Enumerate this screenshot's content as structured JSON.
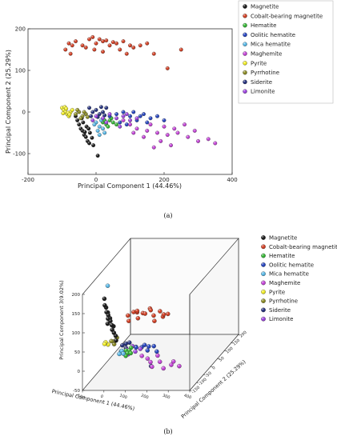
{
  "figure": {
    "panel_a_caption": "(a)",
    "panel_b_caption": "(b)"
  },
  "chart_data": [
    {
      "type": "scatter",
      "panel": "(a)",
      "title": "",
      "xlabel": "Principal Component 1 (44.46%)",
      "ylabel": "Principal Component 2 (25.29%)",
      "xlim": [
        -200,
        400
      ],
      "ylim": [
        -150,
        200
      ],
      "xticks": [
        -200,
        0,
        200,
        400
      ],
      "yticks": [
        -100,
        0,
        100,
        200
      ],
      "grid": false,
      "legend_position": "outside-top-right",
      "series": [
        {
          "name": "Magnetite",
          "color": "#111111",
          "points": [
            [
              -50,
              -30
            ],
            [
              -45,
              -40
            ],
            [
              -40,
              -45
            ],
            [
              -35,
              -55
            ],
            [
              -30,
              -60
            ],
            [
              -25,
              -70
            ],
            [
              -20,
              -75
            ],
            [
              -55,
              -20
            ],
            [
              -60,
              -10
            ],
            [
              -38,
              -25
            ],
            [
              -28,
              -35
            ],
            [
              -18,
              -50
            ],
            [
              -12,
              -62
            ],
            [
              -8,
              -80
            ],
            [
              5,
              -105
            ],
            [
              -42,
              -15
            ],
            [
              -33,
              -48
            ],
            [
              -22,
              -40
            ]
          ]
        },
        {
          "name": "Cobalt-bearing magnetite",
          "color": "#d23a1e",
          "points": [
            [
              -80,
              165
            ],
            [
              -60,
              170
            ],
            [
              -40,
              160
            ],
            [
              -20,
              175
            ],
            [
              0,
              165
            ],
            [
              20,
              170
            ],
            [
              40,
              160
            ],
            [
              60,
              165
            ],
            [
              80,
              170
            ],
            [
              100,
              160
            ],
            [
              -90,
              150
            ],
            [
              -70,
              160
            ],
            [
              -10,
              180
            ],
            [
              10,
              175
            ],
            [
              30,
              172
            ],
            [
              50,
              168
            ],
            [
              70,
              150
            ],
            [
              90,
              140
            ],
            [
              110,
              155
            ],
            [
              130,
              160
            ],
            [
              150,
              165
            ],
            [
              170,
              140
            ],
            [
              -75,
              140
            ],
            [
              -5,
              150
            ],
            [
              20,
              145
            ],
            [
              210,
              105
            ],
            [
              250,
              150
            ],
            [
              -30,
              155
            ]
          ]
        },
        {
          "name": "Hematite",
          "color": "#2fb52f",
          "points": [
            [
              20,
              -25
            ],
            [
              30,
              -30
            ],
            [
              40,
              -20
            ],
            [
              50,
              -25
            ],
            [
              60,
              -30
            ],
            [
              35,
              -35
            ],
            [
              45,
              -15
            ],
            [
              25,
              -20
            ]
          ]
        },
        {
          "name": "Oolitic hematite",
          "color": "#1f3fbf",
          "points": [
            [
              40,
              -10
            ],
            [
              60,
              -5
            ],
            [
              80,
              0
            ],
            [
              100,
              -10
            ],
            [
              120,
              -20
            ],
            [
              140,
              -5
            ],
            [
              160,
              -15
            ],
            [
              180,
              -10
            ],
            [
              200,
              -20
            ],
            [
              70,
              -25
            ],
            [
              90,
              -30
            ],
            [
              110,
              0
            ],
            [
              130,
              -10
            ],
            [
              150,
              -25
            ]
          ]
        },
        {
          "name": "Mica hematite",
          "color": "#55b8e8",
          "points": [
            [
              0,
              -25
            ],
            [
              10,
              -35
            ],
            [
              20,
              -40
            ],
            [
              5,
              -45
            ],
            [
              15,
              -20
            ],
            [
              -5,
              -30
            ],
            [
              25,
              -50
            ],
            [
              10,
              -55
            ]
          ]
        },
        {
          "name": "Maghemite",
          "color": "#c43fd8",
          "points": [
            [
              80,
              -20
            ],
            [
              100,
              -30
            ],
            [
              120,
              -40
            ],
            [
              150,
              -45
            ],
            [
              180,
              -50
            ],
            [
              210,
              -55
            ],
            [
              240,
              -50
            ],
            [
              270,
              -60
            ],
            [
              300,
              -70
            ],
            [
              330,
              -65
            ],
            [
              350,
              -75
            ],
            [
              160,
              -30
            ],
            [
              200,
              -35
            ],
            [
              230,
              -40
            ],
            [
              260,
              -30
            ],
            [
              290,
              -45
            ],
            [
              140,
              -60
            ],
            [
              190,
              -70
            ],
            [
              220,
              -80
            ],
            [
              110,
              -50
            ],
            [
              170,
              -85
            ]
          ]
        },
        {
          "name": "Pyrite",
          "color": "#f2ee22",
          "points": [
            [
              -100,
              10
            ],
            [
              -95,
              5
            ],
            [
              -90,
              0
            ],
            [
              -85,
              -5
            ],
            [
              -80,
              -10
            ],
            [
              -75,
              0
            ],
            [
              -92,
              12
            ],
            [
              -88,
              8
            ],
            [
              -82,
              -2
            ],
            [
              -78,
              -6
            ],
            [
              -70,
              5
            ],
            [
              -97,
              -3
            ]
          ]
        },
        {
          "name": "Pyrrhotine",
          "color": "#8a8a1e",
          "points": [
            [
              -60,
              -5
            ],
            [
              -50,
              0
            ],
            [
              -40,
              -10
            ],
            [
              -30,
              -5
            ],
            [
              -55,
              5
            ],
            [
              -45,
              -15
            ],
            [
              -35,
              0
            ],
            [
              -25,
              -12
            ]
          ]
        },
        {
          "name": "Siderite",
          "color": "#1d2a7a",
          "points": [
            [
              -20,
              10
            ],
            [
              -10,
              0
            ],
            [
              0,
              5
            ],
            [
              10,
              -5
            ],
            [
              20,
              0
            ],
            [
              30,
              10
            ],
            [
              -15,
              -10
            ],
            [
              5,
              -12
            ],
            [
              15,
              12
            ],
            [
              25,
              -8
            ]
          ]
        },
        {
          "name": "Limonite",
          "color": "#9b3fe0",
          "points": [
            [
              0,
              -10
            ],
            [
              20,
              -15
            ],
            [
              40,
              -5
            ],
            [
              60,
              -15
            ],
            [
              80,
              -10
            ],
            [
              100,
              -20
            ],
            [
              120,
              -15
            ],
            [
              -10,
              -20
            ],
            [
              30,
              -25
            ],
            [
              70,
              -35
            ],
            [
              90,
              -5
            ]
          ]
        }
      ]
    },
    {
      "type": "scatter",
      "panel": "(b)",
      "title": "",
      "xlabel": "Principal Component 1 (44.46%)",
      "ylabel": "Principal Component 2 (25.29%)",
      "zlabel": "Principal Component 3(9.02%)",
      "xticks": [
        -100,
        0,
        100,
        200,
        300,
        400
      ],
      "yticks": [
        -150,
        -100,
        -50,
        0,
        50,
        100,
        150,
        200
      ],
      "zticks": [
        -50,
        0,
        50,
        100,
        150,
        200
      ],
      "xlim": [
        -100,
        400
      ],
      "ylim": [
        -150,
        200
      ],
      "zlim": [
        -50,
        200
      ],
      "grid": false,
      "legend_position": "outside-top-right",
      "series": [
        {
          "name": "Magnetite",
          "color": "#111111",
          "points": [
            [
              -60,
              -40,
              120
            ],
            [
              -55,
              -45,
              110
            ],
            [
              -50,
              -40,
              100
            ],
            [
              -45,
              -35,
              90
            ],
            [
              -50,
              -45,
              80
            ],
            [
              -40,
              -30,
              70
            ],
            [
              -35,
              -35,
              60
            ],
            [
              -30,
              -30,
              50
            ],
            [
              -25,
              -25,
              40
            ],
            [
              -20,
              -30,
              30
            ],
            [
              -45,
              -50,
              95
            ],
            [
              -55,
              -35,
              105
            ],
            [
              -40,
              -40,
              85
            ],
            [
              -35,
              -25,
              65
            ],
            [
              -60,
              -50,
              130
            ],
            [
              -65,
              -45,
              145
            ]
          ]
        },
        {
          "name": "Cobalt-bearing magnetite",
          "color": "#d23a1e",
          "points": [
            [
              -80,
              150,
              20
            ],
            [
              -60,
              160,
              25
            ],
            [
              -40,
              155,
              30
            ],
            [
              -20,
              165,
              20
            ],
            [
              0,
              150,
              25
            ],
            [
              20,
              160,
              30
            ],
            [
              40,
              150,
              20
            ],
            [
              60,
              165,
              25
            ],
            [
              80,
              155,
              15
            ],
            [
              100,
              160,
              20
            ],
            [
              -70,
              140,
              10
            ],
            [
              -30,
              145,
              15
            ],
            [
              10,
              170,
              30
            ],
            [
              50,
              140,
              10
            ],
            [
              90,
              145,
              25
            ],
            [
              -50,
              170,
              20
            ]
          ]
        },
        {
          "name": "Hematite",
          "color": "#2fb52f",
          "points": [
            [
              20,
              -20,
              0
            ],
            [
              30,
              -25,
              -5
            ],
            [
              40,
              -15,
              5
            ],
            [
              25,
              -30,
              -10
            ],
            [
              35,
              -20,
              0
            ],
            [
              45,
              -25,
              -5
            ]
          ]
        },
        {
          "name": "Oolitic hematite",
          "color": "#1f3fbf",
          "points": [
            [
              60,
              -10,
              5
            ],
            [
              80,
              0,
              0
            ],
            [
              100,
              -10,
              10
            ],
            [
              120,
              -20,
              0
            ],
            [
              140,
              -5,
              5
            ],
            [
              160,
              -15,
              -5
            ],
            [
              70,
              -25,
              10
            ],
            [
              110,
              5,
              0
            ]
          ]
        },
        {
          "name": "Mica hematite",
          "color": "#55b8e8",
          "points": [
            [
              0,
              -25,
              0
            ],
            [
              10,
              -35,
              5
            ],
            [
              -5,
              -30,
              -5
            ],
            [
              20,
              -40,
              0
            ],
            [
              -40,
              -60,
              185
            ]
          ]
        },
        {
          "name": "Maghemite",
          "color": "#c43fd8",
          "points": [
            [
              100,
              -30,
              -10
            ],
            [
              150,
              -45,
              -20
            ],
            [
              200,
              -55,
              -15
            ],
            [
              250,
              -50,
              -25
            ],
            [
              300,
              -70,
              -20
            ],
            [
              180,
              -40,
              -5
            ],
            [
              220,
              -60,
              -30
            ],
            [
              130,
              -35,
              -15
            ],
            [
              270,
              -65,
              -10
            ],
            [
              160,
              -50,
              -30
            ]
          ]
        },
        {
          "name": "Pyrite",
          "color": "#f2ee22",
          "points": [
            [
              -90,
              0,
              10
            ],
            [
              -85,
              -5,
              15
            ],
            [
              -80,
              5,
              5
            ],
            [
              -88,
              -8,
              12
            ]
          ]
        },
        {
          "name": "Pyrrhotine",
          "color": "#8a8a1e",
          "points": [
            [
              -50,
              0,
              15
            ],
            [
              -40,
              -10,
              20
            ],
            [
              -45,
              -5,
              10
            ],
            [
              -35,
              0,
              25
            ],
            [
              -55,
              -10,
              20
            ]
          ]
        },
        {
          "name": "Siderite",
          "color": "#1d2a7a",
          "points": [
            [
              -10,
              0,
              5
            ],
            [
              10,
              -5,
              0
            ],
            [
              20,
              5,
              10
            ],
            [
              0,
              10,
              5
            ],
            [
              130,
              -10,
              -45
            ]
          ]
        },
        {
          "name": "Limonite",
          "color": "#9b3fe0",
          "points": [
            [
              20,
              -15,
              0
            ],
            [
              40,
              -5,
              5
            ],
            [
              60,
              -15,
              -5
            ],
            [
              80,
              -10,
              0
            ],
            [
              30,
              -20,
              -10
            ]
          ]
        }
      ]
    }
  ]
}
